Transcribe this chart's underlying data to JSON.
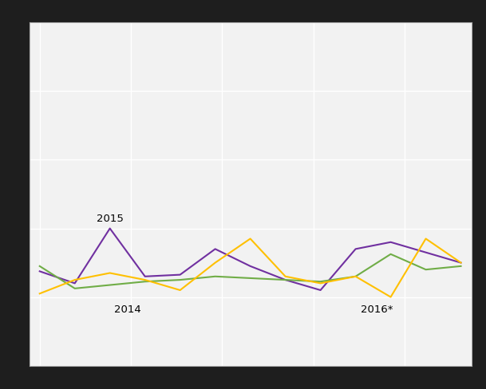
{
  "purple_line": [
    55,
    48,
    80,
    52,
    53,
    68,
    58,
    50,
    44,
    68,
    72,
    66,
    60
  ],
  "green_line": [
    58,
    45,
    47,
    49,
    50,
    52,
    51,
    50,
    49,
    52,
    65,
    56,
    58
  ],
  "orange_line": [
    42,
    50,
    54,
    50,
    44,
    60,
    74,
    52,
    48,
    52,
    40,
    74,
    60
  ],
  "purple_color": "#7030a0",
  "green_color": "#70ad47",
  "orange_color": "#ffc000",
  "plot_bg": "#f2f2f2",
  "grid_color": "#ffffff",
  "outer_bg": "#1e1e1e",
  "ann_2015_x": 2,
  "ann_2015_y": 83,
  "ann_2014_x": 2.5,
  "ann_2014_y": 36,
  "ann_2016_x": 9.6,
  "ann_2016_y": 36,
  "label_2015": "2015",
  "label_2014": "2014",
  "label_2016": "2016*",
  "ylim": [
    0,
    200
  ],
  "xlim": [
    -0.3,
    12.3
  ],
  "line_width": 1.5,
  "ann_fontsize": 9.5
}
